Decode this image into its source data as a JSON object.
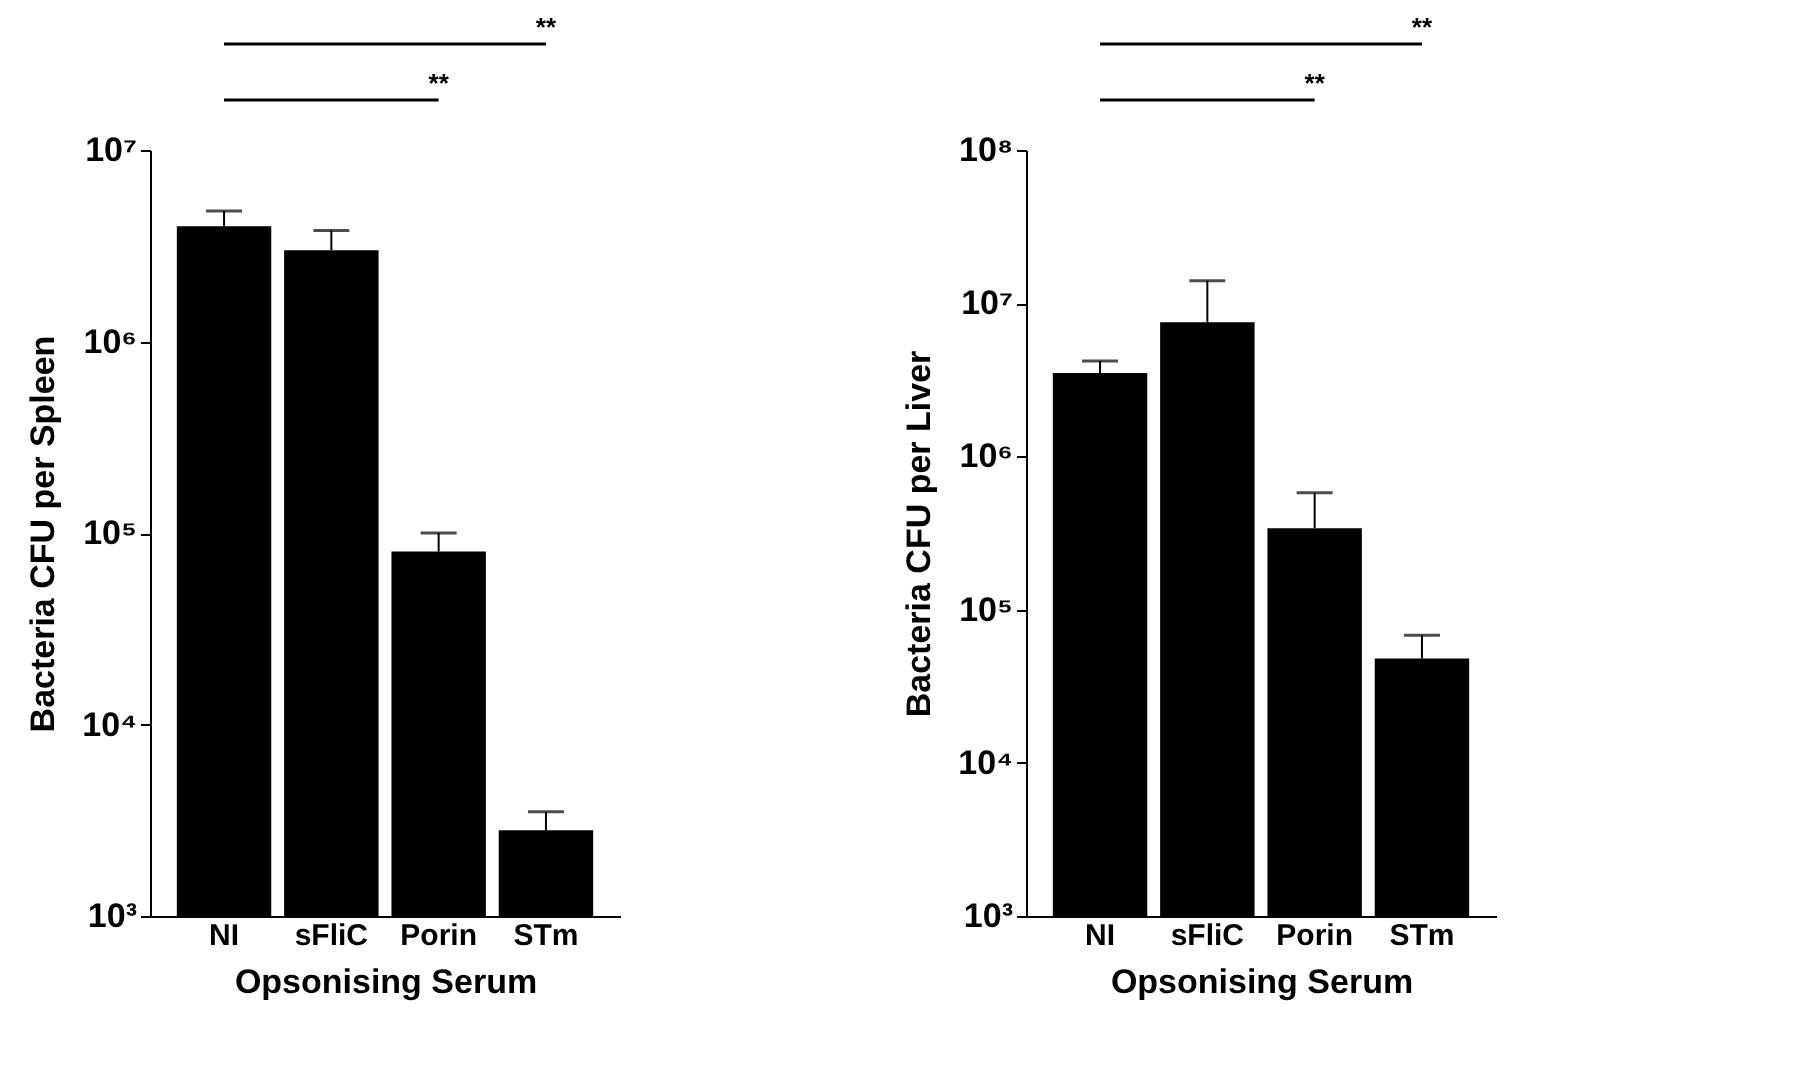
{
  "chart_data": [
    {
      "type": "bar",
      "xlabel": "Opsonising Serum",
      "ylabel": "Bacteria CFU per Spleen",
      "categories": [
        "NI",
        "sFliC",
        "Porin",
        "STm"
      ],
      "values": [
        4000000,
        3000000,
        80000,
        2800
      ],
      "errors": [
        [
          4000000,
          4800000
        ],
        [
          3000000,
          3800000
        ],
        [
          80000,
          100000
        ],
        [
          2800,
          3500
        ]
      ],
      "color": "#000000",
      "log": "y",
      "ylim": [
        1000,
        10000000
      ],
      "yticks": [
        {
          "value": 1000,
          "label": "10³"
        },
        {
          "value": 10000,
          "label": "10⁴"
        },
        {
          "value": 100000,
          "label": "10⁵"
        },
        {
          "value": 1000000,
          "label": "10⁶"
        },
        {
          "value": 10000000,
          "label": "10⁷"
        }
      ],
      "grid": false,
      "annotations": [
        "**",
        "**"
      ]
    },
    {
      "type": "bar",
      "xlabel": "Opsonising Serum",
      "ylabel": "Bacteria CFU per Liver",
      "categories": [
        "NI",
        "sFliC",
        "Porin",
        "STm"
      ],
      "values": [
        3500000,
        7500000,
        340000,
        48000
      ],
      "errors": [
        [
          3500000,
          4200000
        ],
        [
          7500000,
          14000000
        ],
        [
          340000,
          580000
        ],
        [
          48000,
          68000
        ]
      ],
      "color": "#000000",
      "log": "y",
      "ylim": [
        1000,
        100000000
      ],
      "yticks": [
        {
          "value": 1000,
          "label": "10³"
        },
        {
          "value": 10000,
          "label": "10⁴"
        },
        {
          "value": 100000,
          "label": "10⁵"
        },
        {
          "value": 1000000,
          "label": "10⁶"
        },
        {
          "value": 10000000,
          "label": "10⁷"
        },
        {
          "value": 100000000,
          "label": "10⁸"
        }
      ],
      "grid": false,
      "annotations": [
        "**",
        "**"
      ]
    }
  ]
}
